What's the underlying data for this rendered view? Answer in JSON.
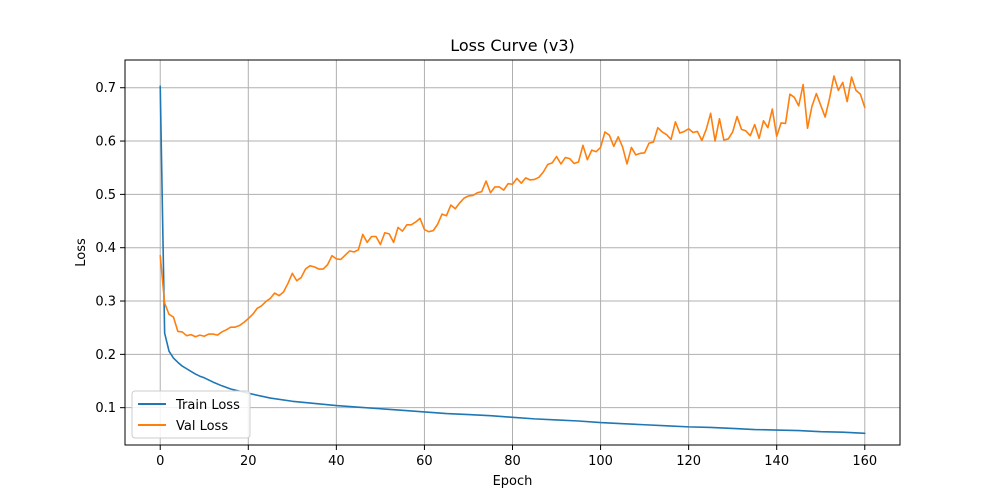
{
  "chart_data": {
    "type": "line",
    "title": "Loss Curve (v3)",
    "xlabel": "Epoch",
    "ylabel": "Loss",
    "xlim": [
      -8,
      168
    ],
    "ylim": [
      0.03,
      0.752
    ],
    "xticks": [
      0,
      20,
      40,
      60,
      80,
      100,
      120,
      140,
      160
    ],
    "yticks": [
      0.1,
      0.2,
      0.3,
      0.4,
      0.5,
      0.6,
      0.7
    ],
    "grid": true,
    "legend_position": "lower-left",
    "series": [
      {
        "name": "Train Loss",
        "color": "#1f77b4",
        "x": [
          0,
          1,
          2,
          3,
          4,
          5,
          6,
          7,
          8,
          9,
          10,
          12,
          14,
          16,
          18,
          20,
          25,
          30,
          35,
          40,
          45,
          50,
          55,
          60,
          65,
          70,
          75,
          80,
          85,
          90,
          95,
          100,
          105,
          110,
          115,
          120,
          125,
          130,
          135,
          140,
          145,
          150,
          155,
          160
        ],
        "y": [
          0.703,
          0.24,
          0.206,
          0.193,
          0.185,
          0.178,
          0.173,
          0.168,
          0.163,
          0.159,
          0.156,
          0.148,
          0.141,
          0.135,
          0.131,
          0.127,
          0.118,
          0.112,
          0.108,
          0.104,
          0.101,
          0.098,
          0.095,
          0.092,
          0.089,
          0.087,
          0.085,
          0.082,
          0.079,
          0.077,
          0.075,
          0.072,
          0.07,
          0.068,
          0.066,
          0.064,
          0.063,
          0.061,
          0.059,
          0.058,
          0.057,
          0.055,
          0.054,
          0.052
        ]
      },
      {
        "name": "Val Loss",
        "color": "#ff7f0e",
        "x": [
          0,
          1,
          2,
          3,
          4,
          5,
          6,
          7,
          8,
          9,
          10,
          11,
          12,
          13,
          14,
          15,
          16,
          17,
          18,
          19,
          20,
          21,
          22,
          23,
          24,
          25,
          26,
          27,
          28,
          29,
          30,
          31,
          32,
          33,
          34,
          35,
          36,
          37,
          38,
          39,
          40,
          41,
          42,
          43,
          44,
          45,
          46,
          47,
          48,
          49,
          50,
          51,
          52,
          53,
          54,
          55,
          56,
          57,
          58,
          59,
          60,
          61,
          62,
          63,
          64,
          65,
          66,
          67,
          68,
          69,
          70,
          71,
          72,
          73,
          74,
          75,
          76,
          77,
          78,
          79,
          80,
          81,
          82,
          83,
          84,
          85,
          86,
          87,
          88,
          89,
          90,
          91,
          92,
          93,
          94,
          95,
          96,
          97,
          98,
          99,
          100,
          101,
          102,
          103,
          104,
          105,
          106,
          107,
          108,
          109,
          110,
          111,
          112,
          113,
          114,
          115,
          116,
          117,
          118,
          119,
          120,
          121,
          122,
          123,
          124,
          125,
          126,
          127,
          128,
          129,
          130,
          131,
          132,
          133,
          134,
          135,
          136,
          137,
          138,
          139,
          140,
          141,
          142,
          143,
          144,
          145,
          146,
          147,
          148,
          149,
          150,
          151,
          152,
          153,
          154,
          155,
          156,
          157,
          158,
          159,
          160
        ],
        "y": [
          0.385,
          0.296,
          0.275,
          0.27,
          0.243,
          0.242,
          0.235,
          0.237,
          0.233,
          0.236,
          0.234,
          0.238,
          0.238,
          0.236,
          0.242,
          0.246,
          0.251,
          0.251,
          0.254,
          0.26,
          0.267,
          0.275,
          0.286,
          0.291,
          0.299,
          0.305,
          0.315,
          0.31,
          0.317,
          0.333,
          0.352,
          0.338,
          0.344,
          0.36,
          0.366,
          0.364,
          0.36,
          0.36,
          0.368,
          0.385,
          0.379,
          0.378,
          0.386,
          0.394,
          0.392,
          0.396,
          0.425,
          0.41,
          0.421,
          0.421,
          0.406,
          0.428,
          0.426,
          0.41,
          0.438,
          0.431,
          0.443,
          0.443,
          0.448,
          0.455,
          0.434,
          0.43,
          0.432,
          0.444,
          0.463,
          0.46,
          0.48,
          0.473,
          0.484,
          0.493,
          0.497,
          0.498,
          0.503,
          0.505,
          0.525,
          0.503,
          0.514,
          0.514,
          0.508,
          0.52,
          0.519,
          0.53,
          0.521,
          0.531,
          0.527,
          0.528,
          0.532,
          0.542,
          0.556,
          0.559,
          0.571,
          0.557,
          0.569,
          0.567,
          0.558,
          0.561,
          0.592,
          0.565,
          0.583,
          0.58,
          0.588,
          0.617,
          0.611,
          0.59,
          0.608,
          0.589,
          0.557,
          0.588,
          0.574,
          0.577,
          0.578,
          0.596,
          0.598,
          0.625,
          0.617,
          0.612,
          0.603,
          0.636,
          0.615,
          0.618,
          0.623,
          0.616,
          0.618,
          0.601,
          0.622,
          0.652,
          0.6,
          0.642,
          0.602,
          0.604,
          0.617,
          0.646,
          0.622,
          0.619,
          0.61,
          0.631,
          0.605,
          0.638,
          0.625,
          0.66,
          0.609,
          0.634,
          0.633,
          0.688,
          0.682,
          0.666,
          0.706,
          0.624,
          0.665,
          0.689,
          0.667,
          0.645,
          0.68,
          0.722,
          0.695,
          0.71,
          0.674,
          0.72,
          0.695,
          0.688,
          0.663
        ]
      }
    ]
  }
}
